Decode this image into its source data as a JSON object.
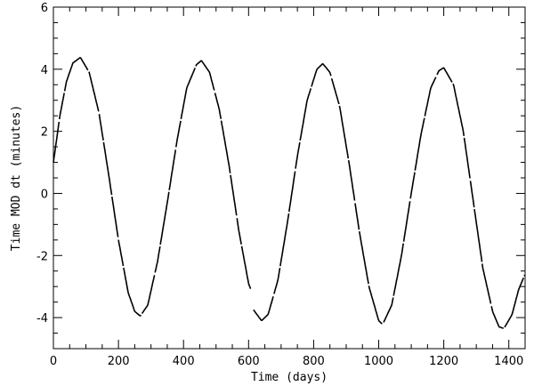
{
  "chart_data": {
    "type": "line",
    "title": "",
    "xlabel": "Time (days)",
    "ylabel": "Time MOD dt  (minutes)",
    "xlim": [
      0,
      1450
    ],
    "ylim": [
      -5,
      6
    ],
    "xticks": [
      0,
      200,
      400,
      600,
      800,
      1000,
      1200,
      1400
    ],
    "yticks": [
      -4,
      -2,
      0,
      2,
      4,
      6
    ],
    "grid": false,
    "line_color": "#000000",
    "model": {
      "amplitude": 4.2,
      "period": 372,
      "phase_zero_day": 83
    },
    "series": [
      {
        "segments": [
          [
            [
              0,
              1.0
            ],
            [
              20,
              2.5
            ],
            [
              40,
              3.6
            ],
            [
              60,
              4.2
            ],
            [
              83,
              4.38
            ],
            [
              110,
              3.9
            ],
            [
              140,
              2.6
            ],
            [
              170,
              0.6
            ],
            [
              200,
              -1.5
            ],
            [
              230,
              -3.2
            ],
            [
              250,
              -3.8
            ],
            [
              267,
              -3.95
            ],
            [
              290,
              -3.6
            ],
            [
              320,
              -2.2
            ],
            [
              350,
              -0.3
            ],
            [
              380,
              1.7
            ],
            [
              410,
              3.4
            ],
            [
              440,
              4.15
            ],
            [
              455,
              4.28
            ],
            [
              480,
              3.9
            ],
            [
              510,
              2.7
            ],
            [
              540,
              0.9
            ],
            [
              570,
              -1.2
            ],
            [
              600,
              -2.9
            ],
            [
              607,
              -3.1
            ]
          ],
          [
            [
              615,
              -3.75
            ],
            [
              640,
              -4.1
            ],
            [
              660,
              -3.9
            ],
            [
              690,
              -2.8
            ],
            [
              720,
              -0.9
            ],
            [
              750,
              1.2
            ],
            [
              780,
              3.0
            ],
            [
              810,
              4.0
            ],
            [
              828,
              4.18
            ],
            [
              850,
              3.9
            ],
            [
              880,
              2.8
            ],
            [
              910,
              0.9
            ],
            [
              940,
              -1.2
            ],
            [
              970,
              -3.0
            ],
            [
              1000,
              -4.1
            ],
            [
              1012,
              -4.22
            ],
            [
              1040,
              -3.6
            ],
            [
              1070,
              -2.0
            ],
            [
              1100,
              0.0
            ],
            [
              1130,
              1.9
            ],
            [
              1160,
              3.4
            ],
            [
              1185,
              3.95
            ],
            [
              1200,
              4.05
            ],
            [
              1230,
              3.5
            ],
            [
              1260,
              2.0
            ],
            [
              1290,
              -0.2
            ],
            [
              1320,
              -2.4
            ],
            [
              1350,
              -3.8
            ],
            [
              1370,
              -4.3
            ],
            [
              1385,
              -4.35
            ],
            [
              1410,
              -3.9
            ],
            [
              1430,
              -3.1
            ],
            [
              1450,
              -2.6
            ]
          ]
        ]
      }
    ]
  }
}
